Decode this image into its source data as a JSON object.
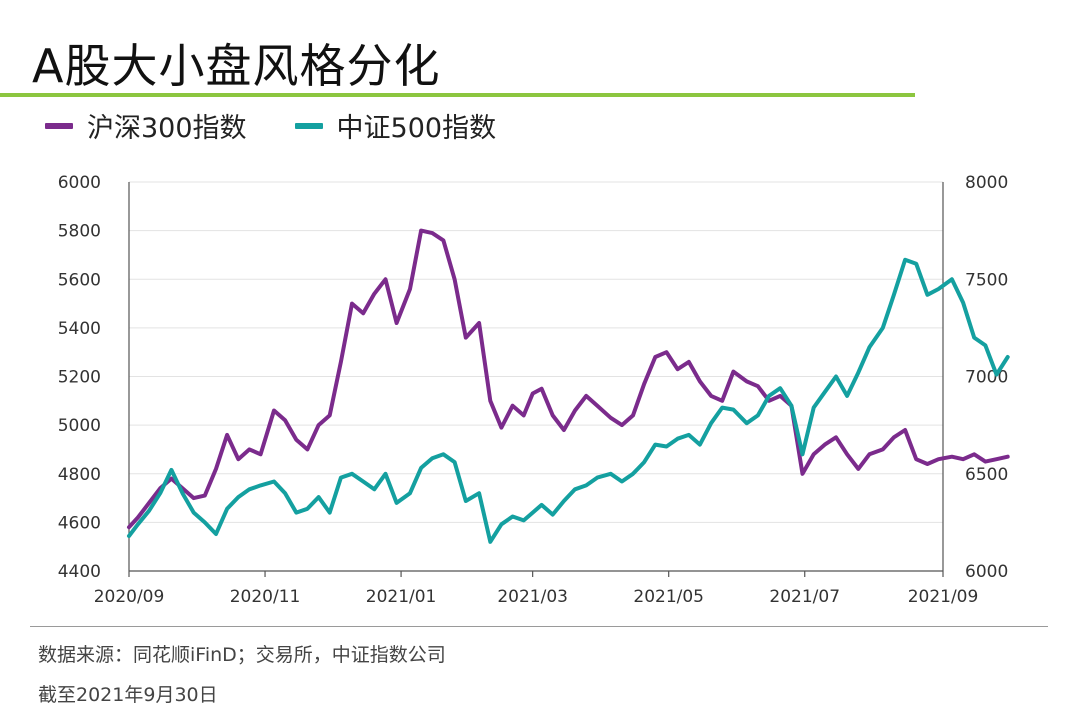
{
  "title": "A股大小盘风格分化",
  "legend": [
    {
      "label": "沪深300指数",
      "color": "#7b2b8c"
    },
    {
      "label": "中证500指数",
      "color": "#14a0a0"
    }
  ],
  "source": "数据来源：同花顺iFinD；交易所，中证指数公司",
  "as_of": "截至2021年9月30日",
  "chart_data": {
    "type": "line",
    "x_ticks": [
      "2020/09",
      "2020/11",
      "2021/01",
      "2021/03",
      "2021/05",
      "2021/07",
      "2021/09"
    ],
    "y_left_ticks": [
      "4400",
      "4600",
      "4800",
      "5000",
      "5200",
      "5400",
      "5600",
      "5800",
      "6000"
    ],
    "y_right_ticks": [
      "6000",
      "6500",
      "7000",
      "7500",
      "8000"
    ],
    "ylim_left": [
      4400,
      6000
    ],
    "ylim_right": [
      6000,
      8000
    ],
    "grid": true,
    "series": [
      {
        "name": "沪深300指数",
        "axis": "left",
        "color": "#7b2b8c",
        "points": [
          [
            "2020-09-01",
            4580
          ],
          [
            "2020-09-05",
            4620
          ],
          [
            "2020-09-10",
            4680
          ],
          [
            "2020-09-15",
            4740
          ],
          [
            "2020-09-20",
            4780
          ],
          [
            "2020-09-25",
            4740
          ],
          [
            "2020-09-30",
            4700
          ],
          [
            "2020-10-05",
            4710
          ],
          [
            "2020-10-10",
            4820
          ],
          [
            "2020-10-15",
            4960
          ],
          [
            "2020-10-20",
            4860
          ],
          [
            "2020-10-25",
            4900
          ],
          [
            "2020-10-30",
            4880
          ],
          [
            "2020-11-05",
            5060
          ],
          [
            "2020-11-10",
            5020
          ],
          [
            "2020-11-15",
            4940
          ],
          [
            "2020-11-20",
            4900
          ],
          [
            "2020-11-25",
            5000
          ],
          [
            "2020-11-30",
            5040
          ],
          [
            "2020-12-05",
            5260
          ],
          [
            "2020-12-10",
            5500
          ],
          [
            "2020-12-15",
            5460
          ],
          [
            "2020-12-20",
            5540
          ],
          [
            "2020-12-25",
            5600
          ],
          [
            "2020-12-30",
            5420
          ],
          [
            "2021-01-05",
            5560
          ],
          [
            "2021-01-10",
            5800
          ],
          [
            "2021-01-15",
            5790
          ],
          [
            "2021-01-20",
            5760
          ],
          [
            "2021-01-25",
            5600
          ],
          [
            "2021-01-30",
            5360
          ],
          [
            "2021-02-05",
            5420
          ],
          [
            "2021-02-10",
            5100
          ],
          [
            "2021-02-15",
            4990
          ],
          [
            "2021-02-20",
            5080
          ],
          [
            "2021-02-25",
            5040
          ],
          [
            "2021-03-01",
            5130
          ],
          [
            "2021-03-05",
            5150
          ],
          [
            "2021-03-10",
            5040
          ],
          [
            "2021-03-15",
            4980
          ],
          [
            "2021-03-20",
            5060
          ],
          [
            "2021-03-25",
            5120
          ],
          [
            "2021-03-30",
            5080
          ],
          [
            "2021-04-05",
            5030
          ],
          [
            "2021-04-10",
            5000
          ],
          [
            "2021-04-15",
            5040
          ],
          [
            "2021-04-20",
            5170
          ],
          [
            "2021-04-25",
            5280
          ],
          [
            "2021-04-30",
            5300
          ],
          [
            "2021-05-05",
            5230
          ],
          [
            "2021-05-10",
            5260
          ],
          [
            "2021-05-15",
            5180
          ],
          [
            "2021-05-20",
            5120
          ],
          [
            "2021-05-25",
            5100
          ],
          [
            "2021-05-30",
            5220
          ],
          [
            "2021-06-05",
            5180
          ],
          [
            "2021-06-10",
            5160
          ],
          [
            "2021-06-15",
            5100
          ],
          [
            "2021-06-20",
            5120
          ],
          [
            "2021-06-25",
            5080
          ],
          [
            "2021-06-30",
            4800
          ],
          [
            "2021-07-05",
            4880
          ],
          [
            "2021-07-10",
            4920
          ],
          [
            "2021-07-15",
            4950
          ],
          [
            "2021-07-20",
            4880
          ],
          [
            "2021-07-25",
            4820
          ],
          [
            "2021-07-30",
            4880
          ],
          [
            "2021-08-05",
            4900
          ],
          [
            "2021-08-10",
            4950
          ],
          [
            "2021-08-15",
            4980
          ],
          [
            "2021-08-20",
            4860
          ],
          [
            "2021-08-25",
            4840
          ],
          [
            "2021-08-30",
            4860
          ],
          [
            "2021-09-05",
            4870
          ],
          [
            "2021-09-10",
            4860
          ],
          [
            "2021-09-15",
            4880
          ],
          [
            "2021-09-20",
            4850
          ],
          [
            "2021-09-25",
            4860
          ],
          [
            "2021-09-30",
            4870
          ]
        ]
      },
      {
        "name": "中证500指数",
        "axis": "right",
        "color": "#14a0a0",
        "points": [
          [
            "2020-09-01",
            6180
          ],
          [
            "2020-09-05",
            6240
          ],
          [
            "2020-09-10",
            6310
          ],
          [
            "2020-09-15",
            6400
          ],
          [
            "2020-09-20",
            6520
          ],
          [
            "2020-09-25",
            6400
          ],
          [
            "2020-09-30",
            6300
          ],
          [
            "2020-10-05",
            6250
          ],
          [
            "2020-10-10",
            6190
          ],
          [
            "2020-10-15",
            6320
          ],
          [
            "2020-10-20",
            6380
          ],
          [
            "2020-10-25",
            6420
          ],
          [
            "2020-10-30",
            6440
          ],
          [
            "2020-11-05",
            6460
          ],
          [
            "2020-11-10",
            6400
          ],
          [
            "2020-11-15",
            6300
          ],
          [
            "2020-11-20",
            6320
          ],
          [
            "2020-11-25",
            6380
          ],
          [
            "2020-11-30",
            6300
          ],
          [
            "2020-12-05",
            6480
          ],
          [
            "2020-12-10",
            6500
          ],
          [
            "2020-12-15",
            6460
          ],
          [
            "2020-12-20",
            6420
          ],
          [
            "2020-12-25",
            6500
          ],
          [
            "2020-12-30",
            6350
          ],
          [
            "2021-01-05",
            6400
          ],
          [
            "2021-01-10",
            6530
          ],
          [
            "2021-01-15",
            6580
          ],
          [
            "2021-01-20",
            6600
          ],
          [
            "2021-01-25",
            6560
          ],
          [
            "2021-01-30",
            6360
          ],
          [
            "2021-02-05",
            6400
          ],
          [
            "2021-02-10",
            6150
          ],
          [
            "2021-02-15",
            6240
          ],
          [
            "2021-02-20",
            6280
          ],
          [
            "2021-02-25",
            6260
          ],
          [
            "2021-03-01",
            6300
          ],
          [
            "2021-03-05",
            6340
          ],
          [
            "2021-03-10",
            6290
          ],
          [
            "2021-03-15",
            6360
          ],
          [
            "2021-03-20",
            6420
          ],
          [
            "2021-03-25",
            6440
          ],
          [
            "2021-03-30",
            6480
          ],
          [
            "2021-04-05",
            6500
          ],
          [
            "2021-04-10",
            6460
          ],
          [
            "2021-04-15",
            6500
          ],
          [
            "2021-04-20",
            6560
          ],
          [
            "2021-04-25",
            6650
          ],
          [
            "2021-04-30",
            6640
          ],
          [
            "2021-05-05",
            6680
          ],
          [
            "2021-05-10",
            6700
          ],
          [
            "2021-05-15",
            6650
          ],
          [
            "2021-05-20",
            6760
          ],
          [
            "2021-05-25",
            6840
          ],
          [
            "2021-05-30",
            6830
          ],
          [
            "2021-06-05",
            6760
          ],
          [
            "2021-06-10",
            6800
          ],
          [
            "2021-06-15",
            6900
          ],
          [
            "2021-06-20",
            6940
          ],
          [
            "2021-06-25",
            6850
          ],
          [
            "2021-06-30",
            6600
          ],
          [
            "2021-07-05",
            6840
          ],
          [
            "2021-07-10",
            6920
          ],
          [
            "2021-07-15",
            7000
          ],
          [
            "2021-07-20",
            6900
          ],
          [
            "2021-07-25",
            7020
          ],
          [
            "2021-07-30",
            7150
          ],
          [
            "2021-08-05",
            7250
          ],
          [
            "2021-08-10",
            7420
          ],
          [
            "2021-08-15",
            7600
          ],
          [
            "2021-08-20",
            7580
          ],
          [
            "2021-08-25",
            7420
          ],
          [
            "2021-08-30",
            7450
          ],
          [
            "2021-09-05",
            7500
          ],
          [
            "2021-09-10",
            7380
          ],
          [
            "2021-09-15",
            7200
          ],
          [
            "2021-09-20",
            7160
          ],
          [
            "2021-09-25",
            7010
          ],
          [
            "2021-09-30",
            7100
          ]
        ]
      }
    ]
  }
}
